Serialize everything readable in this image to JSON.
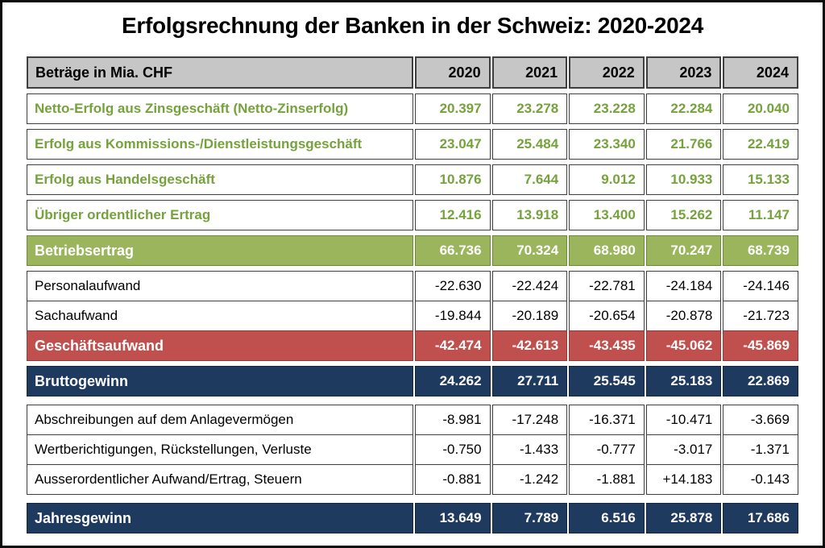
{
  "title": "Erfolgsrechnung der Banken in der Schweiz: 2020-2024",
  "table": {
    "header": {
      "label": "Beträge in Mia. CHF",
      "years": [
        "2020",
        "2021",
        "2022",
        "2023",
        "2024"
      ]
    },
    "rows": [
      {
        "label": "Netto-Erfolg aus Zinsgeschäft (Netto-Zinserfolg)",
        "values": [
          "20.397",
          "23.278",
          "23.228",
          "22.284",
          "20.040"
        ],
        "style": "income",
        "gap": "normal"
      },
      {
        "label": "Erfolg aus Kommissions-/Dienstleistungsgeschäft",
        "values": [
          "23.047",
          "25.484",
          "23.340",
          "21.766",
          "22.419"
        ],
        "style": "income",
        "gap": "normal"
      },
      {
        "label": "Erfolg aus Handelsgeschäft",
        "values": [
          "10.876",
          "7.644",
          "9.012",
          "10.933",
          "15.133"
        ],
        "style": "income",
        "gap": "normal"
      },
      {
        "label": "Übriger ordentlicher Ertrag",
        "values": [
          "12.416",
          "13.918",
          "13.400",
          "15.262",
          "11.147"
        ],
        "style": "income",
        "gap": "normal"
      },
      {
        "label": "Betriebsertrag",
        "values": [
          "66.736",
          "70.324",
          "68.980",
          "70.247",
          "68.739"
        ],
        "style": "total-green",
        "gap": "normal"
      },
      {
        "label": "Personalaufwand",
        "values": [
          "-22.630",
          "-22.424",
          "-22.781",
          "-24.184",
          "-24.146"
        ],
        "style": "plain",
        "gap": "normal"
      },
      {
        "label": "Sachaufwand",
        "values": [
          "-19.844",
          "-20.189",
          "-20.654",
          "-20.878",
          "-21.723"
        ],
        "style": "plain",
        "gap": "tight"
      },
      {
        "label": "Geschäftsaufwand",
        "values": [
          "-42.474",
          "-42.613",
          "-43.435",
          "-45.062",
          "-45.869"
        ],
        "style": "total-red",
        "gap": "tight"
      },
      {
        "label": "Bruttogewinn",
        "values": [
          "24.262",
          "27.711",
          "25.545",
          "25.183",
          "22.869"
        ],
        "style": "total-navy",
        "gap": "normal"
      },
      {
        "label": "Abschreibungen auf dem Anlagevermögen",
        "values": [
          "-8.981",
          "-17.248",
          "-16.371",
          "-10.471",
          "-3.669"
        ],
        "style": "plain",
        "gap": "wide"
      },
      {
        "label": "Wertberichtigungen, Rückstellungen, Verluste",
        "values": [
          "-0.750",
          "-1.433",
          "-0.777",
          "-3.017",
          "-1.371"
        ],
        "style": "plain",
        "gap": "tight"
      },
      {
        "label": "Ausserordentlicher Aufwand/Ertrag, Steuern",
        "values": [
          "-0.881",
          "-1.242",
          "-1.881",
          "+14.183",
          "-0.143"
        ],
        "style": "plain",
        "gap": "tight"
      },
      {
        "label": "Jahresgewinn",
        "values": [
          "13.649",
          "7.789",
          "6.516",
          "25.878",
          "17.686"
        ],
        "style": "total-navy",
        "gap": "wide"
      }
    ]
  },
  "colors": {
    "income_text": "#76a23c",
    "band_green": "#9ab55c",
    "band_red": "#c0504d",
    "band_navy": "#1f3a5f",
    "header_bg": "#c6c6c6",
    "border": "#3f3f3f"
  },
  "chart_data": {
    "type": "table",
    "title": "Erfolgsrechnung der Banken in der Schweiz: 2020-2024",
    "unit": "Beträge in Mia. CHF",
    "categories": [
      "2020",
      "2021",
      "2022",
      "2023",
      "2024"
    ],
    "series": [
      {
        "name": "Netto-Erfolg aus Zinsgeschäft (Netto-Zinserfolg)",
        "values": [
          20.397,
          23.278,
          23.228,
          22.284,
          20.04
        ]
      },
      {
        "name": "Erfolg aus Kommissions-/Dienstleistungsgeschäft",
        "values": [
          23.047,
          25.484,
          23.34,
          21.766,
          22.419
        ]
      },
      {
        "name": "Erfolg aus Handelsgeschäft",
        "values": [
          10.876,
          7.644,
          9.012,
          10.933,
          15.133
        ]
      },
      {
        "name": "Übriger ordentlicher Ertrag",
        "values": [
          12.416,
          13.918,
          13.4,
          15.262,
          11.147
        ]
      },
      {
        "name": "Betriebsertrag",
        "values": [
          66.736,
          70.324,
          68.98,
          70.247,
          68.739
        ]
      },
      {
        "name": "Personalaufwand",
        "values": [
          -22.63,
          -22.424,
          -22.781,
          -24.184,
          -24.146
        ]
      },
      {
        "name": "Sachaufwand",
        "values": [
          -19.844,
          -20.189,
          -20.654,
          -20.878,
          -21.723
        ]
      },
      {
        "name": "Geschäftsaufwand",
        "values": [
          -42.474,
          -42.613,
          -43.435,
          -45.062,
          -45.869
        ]
      },
      {
        "name": "Bruttogewinn",
        "values": [
          24.262,
          27.711,
          25.545,
          25.183,
          22.869
        ]
      },
      {
        "name": "Abschreibungen auf dem Anlagevermögen",
        "values": [
          -8.981,
          -17.248,
          -16.371,
          -10.471,
          -3.669
        ]
      },
      {
        "name": "Wertberichtigungen, Rückstellungen, Verluste",
        "values": [
          -0.75,
          -1.433,
          -0.777,
          -3.017,
          -1.371
        ]
      },
      {
        "name": "Ausserordentlicher Aufwand/Ertrag, Steuern",
        "values": [
          -0.881,
          -1.242,
          -1.881,
          14.183,
          -0.143
        ]
      },
      {
        "name": "Jahresgewinn",
        "values": [
          13.649,
          7.789,
          6.516,
          25.878,
          17.686
        ]
      }
    ]
  }
}
